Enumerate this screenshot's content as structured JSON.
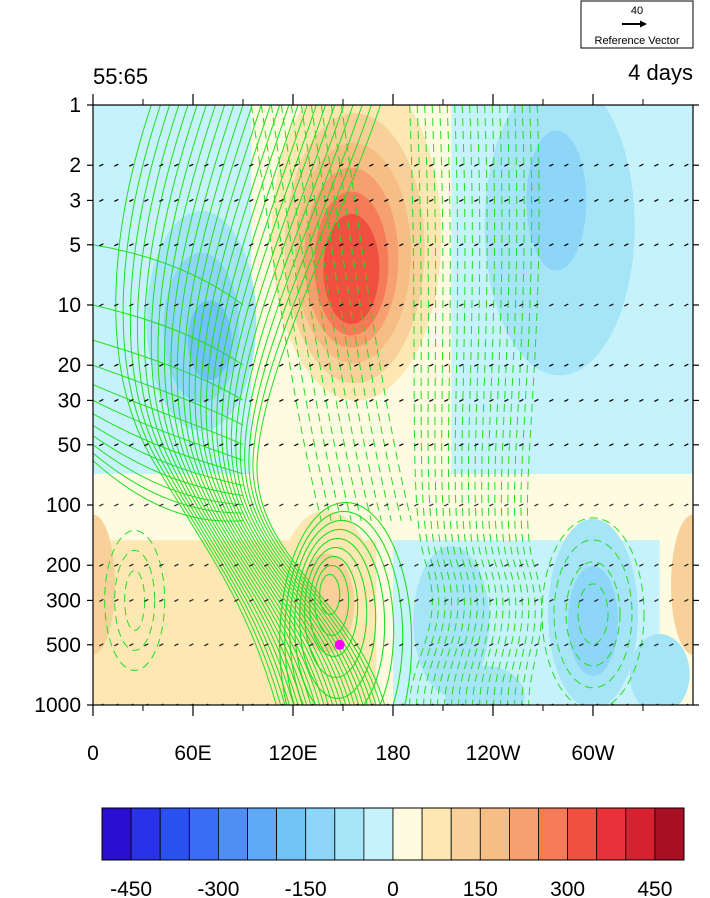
{
  "chart_data": {
    "type": "heatmap",
    "title_left": "55:65",
    "title_right": "4 days",
    "reference_vector": {
      "magnitude": "40",
      "label": "Reference Vector"
    },
    "x_axis": {
      "ticks": [
        {
          "lon": 0,
          "label": "0"
        },
        {
          "lon": 60,
          "label": "60E"
        },
        {
          "lon": 120,
          "label": "120E"
        },
        {
          "lon": 180,
          "label": "180"
        },
        {
          "lon": 240,
          "label": "120W"
        },
        {
          "lon": 300,
          "label": "60W"
        }
      ],
      "range": [
        0,
        360
      ]
    },
    "y_axis": {
      "scale": "log",
      "reversed": true,
      "range": [
        1000,
        1
      ],
      "ticks": [
        "1",
        "2",
        "3",
        "5",
        "10",
        "20",
        "30",
        "50",
        "100",
        "200",
        "300",
        "500",
        "1000"
      ]
    },
    "colorbar": {
      "levels": [
        -450,
        -300,
        -150,
        0,
        150,
        300,
        450
      ],
      "labels": [
        "-450",
        "-300",
        "-150",
        "0",
        "150",
        "300",
        "450"
      ],
      "colors": [
        "#2b0fd0",
        "#2a32e8",
        "#2a52f0",
        "#3a6cf5",
        "#4f8ff5",
        "#5fa9f5",
        "#72c3f5",
        "#8ed6f7",
        "#a6e4f7",
        "#c6f3fb",
        "#fffbe0",
        "#fde8b4",
        "#f8d19a",
        "#f6bd85",
        "#f7a06f",
        "#f57a58",
        "#f05040",
        "#e8333a",
        "#d62230",
        "#a80e24"
      ]
    },
    "shaded_field": [
      {
        "sign": "positive",
        "lon": 155,
        "p": 6,
        "peak": 400
      },
      {
        "sign": "positive",
        "lon": 140,
        "p": 300,
        "peak": 100
      },
      {
        "sign": "positive",
        "lon": 0,
        "p": 250,
        "peak": 120
      },
      {
        "sign": "negative",
        "lon": 65,
        "p": 12,
        "peak": -150
      },
      {
        "sign": "negative",
        "lon": 280,
        "p": 4,
        "peak": -150
      },
      {
        "sign": "negative",
        "lon": 300,
        "p": 350,
        "peak": -140
      },
      {
        "sign": "negative",
        "lon": 215,
        "p": 400,
        "peak": -100
      }
    ],
    "contour_centers": [
      {
        "sign": "positive",
        "lon": 142,
        "p": 280
      },
      {
        "sign": "negative",
        "lon": 300,
        "p": 350
      },
      {
        "sign": "negative",
        "lon": 25,
        "p": 300
      }
    ],
    "marker": {
      "lon": 148,
      "p": 500,
      "color": "#ff00ff"
    },
    "contour_color": "#22dd22",
    "vector_levels": [
      "2",
      "3",
      "5",
      "10",
      "20",
      "30",
      "50",
      "100",
      "200",
      "300",
      "500",
      "1000"
    ]
  }
}
